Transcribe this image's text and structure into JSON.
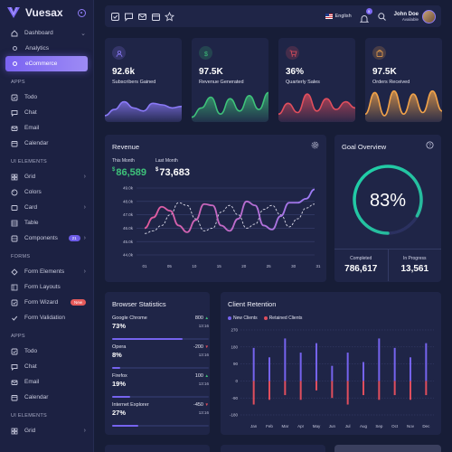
{
  "brand": {
    "name": "Vuesax"
  },
  "sidebar": {
    "dashboard": "Dashboard",
    "analytics": "Analytics",
    "ecommerce": "eCommerce",
    "sections": [
      "APPS",
      "UI ELEMENTS",
      "FORMS",
      "APPS",
      "UI ELEMENTS"
    ],
    "apps": [
      "Todo",
      "Chat",
      "Email",
      "Calendar"
    ],
    "ui": [
      "Grid",
      "Colors",
      "Card",
      "Table",
      "Components"
    ],
    "components_badge": "21",
    "forms": [
      "Form Elements",
      "Form Layouts",
      "Form Wizard",
      "Form Validation"
    ],
    "form_wizard_badge": "New",
    "apps2": [
      "Todo",
      "Chat",
      "Email",
      "Calendar"
    ],
    "ui2": [
      "Grid"
    ]
  },
  "topbar": {
    "language": "English",
    "notification_count": "5",
    "user_name": "John Doe",
    "user_status": "Available"
  },
  "stats": [
    {
      "value": "92.6k",
      "label": "Subscribers Gained",
      "color": "#8a79f7"
    },
    {
      "value": "97.5K",
      "label": "Revenue Generated",
      "color": "#3ec27a"
    },
    {
      "value": "36%",
      "label": "Quarterly Sales",
      "color": "#e04e5d"
    },
    {
      "value": "97.5K",
      "label": "Orders Received",
      "color": "#f0a24a"
    }
  ],
  "revenue": {
    "title": "Revenue",
    "this_month_label": "This Month",
    "this_month_value": "86,589",
    "last_month_label": "Last Month",
    "last_month_value": "73,683",
    "currency": "$"
  },
  "goal": {
    "title": "Goal Overview",
    "percent_label": "83%",
    "percent": 83,
    "completed_label": "Completed",
    "completed_value": "786,617",
    "in_progress_label": "In Progress",
    "in_progress_value": "13,561"
  },
  "browser": {
    "title": "Browser Statistics",
    "rows": [
      {
        "name": "Google Chrome",
        "percent": "73%",
        "delta": "800",
        "direction": "up",
        "time": "13:16",
        "fill": 0.73
      },
      {
        "name": "Opera",
        "percent": "8%",
        "delta": "-200",
        "direction": "down",
        "time": "13:16",
        "fill": 0.08
      },
      {
        "name": "Firefox",
        "percent": "19%",
        "delta": "100",
        "direction": "up",
        "time": "13:16",
        "fill": 0.19
      },
      {
        "name": "Internet Explorer",
        "percent": "27%",
        "delta": "-450",
        "direction": "down",
        "time": "13:16",
        "fill": 0.27
      }
    ]
  },
  "retention": {
    "title": "Client Retention",
    "legend_new": "New Clients",
    "legend_retained": "Retained Clients",
    "new_color": "#7563ee",
    "retained_color": "#e04e5d"
  },
  "chart_data": [
    {
      "type": "line",
      "x": [
        "01",
        "05",
        "10",
        "15",
        "20",
        "25",
        "30",
        "35",
        "40",
        "45",
        "50",
        "55",
        "60",
        "65",
        "70",
        "75",
        "80",
        "85",
        "90",
        "95",
        "100"
      ],
      "tick_labels_x": [
        "01",
        "05",
        "10",
        "15",
        "20",
        "25",
        "30",
        "31"
      ],
      "series": [
        {
          "name": "This Month",
          "color": "#b072f0",
          "values": [
            46.0,
            46.8,
            47.6,
            47.3,
            46.2,
            45.7,
            46.6,
            47.8,
            47.7,
            46.2,
            45.8,
            46.7,
            48.0,
            47.7,
            46.2,
            45.9,
            46.9,
            47.9,
            47.9,
            48.2,
            48.9
          ]
        },
        {
          "name": "Last Month",
          "color": "#d9d9e8",
          "values": [
            45.6,
            45.8,
            46.2,
            47.0,
            47.9,
            47.7,
            46.7,
            45.8,
            46.0,
            47.2,
            47.7,
            47.0,
            46.0,
            46.3,
            47.4,
            47.7,
            47.0,
            46.1,
            46.7,
            47.5,
            47.8
          ]
        }
      ],
      "yticks": [
        "49.0k",
        "48.0k",
        "47.0k",
        "46.0k",
        "45.0k",
        "44.0k"
      ],
      "ylim": [
        44.0,
        49.0
      ]
    },
    {
      "type": "bar",
      "categories": [
        "Jan",
        "Feb",
        "Mar",
        "Apr",
        "May",
        "Jun",
        "Jul",
        "Aug",
        "Sep",
        "Oct",
        "Nov",
        "Dec"
      ],
      "series": [
        {
          "name": "New Clients",
          "values": [
            175,
            125,
            225,
            150,
            200,
            80,
            150,
            100,
            225,
            175,
            125,
            200
          ]
        },
        {
          "name": "Retained Clients",
          "values": [
            -125,
            -100,
            -75,
            -100,
            -50,
            -90,
            -125,
            -75,
            -100,
            -75,
            -100,
            -75
          ]
        }
      ],
      "yticks": [
        "270",
        "180",
        "90",
        "0",
        "-90",
        "-180"
      ],
      "ylim": [
        -180,
        270
      ]
    }
  ]
}
